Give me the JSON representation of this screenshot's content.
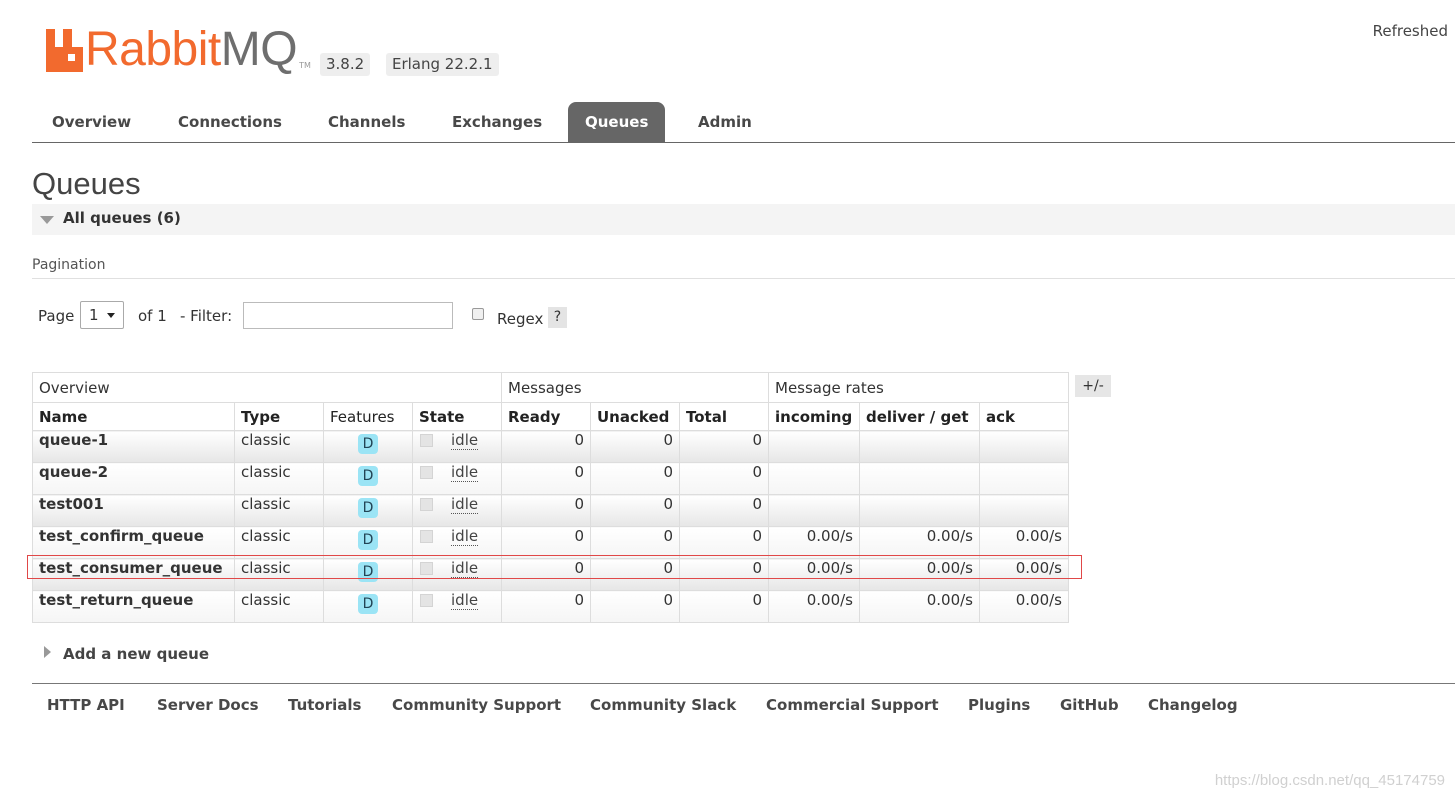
{
  "header": {
    "brand_main": "Rabbit",
    "brand_mq": "MQ",
    "brand_tm": "TM",
    "version": "3.8.2",
    "erlang": "Erlang 22.2.1",
    "refreshed": "Refreshed"
  },
  "nav": {
    "tabs": [
      {
        "label": "Overview"
      },
      {
        "label": "Connections"
      },
      {
        "label": "Channels"
      },
      {
        "label": "Exchanges"
      },
      {
        "label": "Queues",
        "active": true
      },
      {
        "label": "Admin"
      }
    ]
  },
  "page": {
    "title": "Queues",
    "section": "All queues (6)",
    "pagination_label": "Pagination"
  },
  "pagination": {
    "page_label": "Page",
    "page_value": "1",
    "of_label": "of 1",
    "filter_label": "- Filter:",
    "filter_value": "",
    "regex_label": "Regex",
    "help_label": "?"
  },
  "table": {
    "groups": [
      "Overview",
      "Messages",
      "Message rates"
    ],
    "columns": [
      "Name",
      "Type",
      "Features",
      "State",
      "Ready",
      "Unacked",
      "Total",
      "incoming",
      "deliver / get",
      "ack"
    ],
    "toggle_label": "+/-",
    "rows": [
      {
        "name": "queue-1",
        "type": "classic",
        "feature": "D",
        "state": "idle",
        "ready": "0",
        "unacked": "0",
        "total": "0",
        "incoming": "",
        "deliver": "",
        "ack": ""
      },
      {
        "name": "queue-2",
        "type": "classic",
        "feature": "D",
        "state": "idle",
        "ready": "0",
        "unacked": "0",
        "total": "0",
        "incoming": "",
        "deliver": "",
        "ack": ""
      },
      {
        "name": "test001",
        "type": "classic",
        "feature": "D",
        "state": "idle",
        "ready": "0",
        "unacked": "0",
        "total": "0",
        "incoming": "",
        "deliver": "",
        "ack": ""
      },
      {
        "name": "test_confirm_queue",
        "type": "classic",
        "feature": "D",
        "state": "idle",
        "ready": "0",
        "unacked": "0",
        "total": "0",
        "incoming": "0.00/s",
        "deliver": "0.00/s",
        "ack": "0.00/s"
      },
      {
        "name": "test_consumer_queue",
        "type": "classic",
        "feature": "D",
        "state": "idle",
        "ready": "0",
        "unacked": "0",
        "total": "0",
        "incoming": "0.00/s",
        "deliver": "0.00/s",
        "ack": "0.00/s"
      },
      {
        "name": "test_return_queue",
        "type": "classic",
        "feature": "D",
        "state": "idle",
        "ready": "0",
        "unacked": "0",
        "total": "0",
        "incoming": "0.00/s",
        "deliver": "0.00/s",
        "ack": "0.00/s"
      }
    ]
  },
  "add_queue": "Add a new queue",
  "footer": {
    "links": [
      "HTTP API",
      "Server Docs",
      "Tutorials",
      "Community Support",
      "Community Slack",
      "Commercial Support",
      "Plugins",
      "GitHub",
      "Changelog"
    ]
  },
  "watermark": "https://blog.csdn.net/qq_45174759",
  "colors": {
    "brand_orange": "#f26a2e",
    "active_tab": "#666666",
    "feature_badge": "#9be4f5",
    "highlight": "#e04848"
  }
}
